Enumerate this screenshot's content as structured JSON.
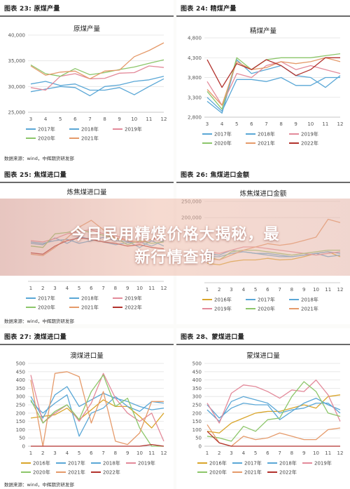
{
  "headline": {
    "line1": "今日民用精煤价格大揭秘，最",
    "line2": "新行情查询"
  },
  "source_text": "数据来源：wind，中辉期货研发部",
  "panels": [
    {
      "label": "图表 23: 原煤产量",
      "chart_title": "原煤产量"
    },
    {
      "label": "图表 24: 精煤产量",
      "chart_title": "精煤产量"
    },
    {
      "label": "图表 25: 焦煤进口量",
      "chart_title": "炼焦煤进口量"
    },
    {
      "label": "图表 26: 焦煤进口金额",
      "chart_title": "炼焦煤进口金额"
    },
    {
      "label": "图表 27: 澳煤进口量",
      "chart_title": "澳煤进口量"
    },
    {
      "label": "图表 28、蒙煤进口量",
      "chart_title": "蒙煤进口量"
    }
  ],
  "colors": {
    "2016年": "#d9a52b",
    "2017年": "#5aa7d6",
    "2018年": "#5aa7d6",
    "2019年": "#e38a9a",
    "2020年": "#8cc66a",
    "2021年": "#e59a6a",
    "2022年": "#b2322d"
  },
  "chart_data": [
    {
      "type": "line",
      "title": "原煤产量",
      "categories": [
        "3",
        "4",
        "5",
        "6",
        "7",
        "8",
        "9",
        "10",
        "11",
        "12"
      ],
      "ylim": [
        25000,
        40000
      ],
      "yticks": [
        "40,000",
        "35,000",
        "30,000",
        "25,000"
      ],
      "series": [
        {
          "name": "2017年",
          "values": [
            30500,
            31000,
            30200,
            30500,
            29300,
            29300,
            29800,
            28400,
            30000,
            31500
          ]
        },
        {
          "name": "2018年",
          "values": [
            29000,
            29500,
            30000,
            29800,
            28200,
            30000,
            30300,
            31000,
            31300,
            32000
          ]
        },
        {
          "name": "2019年",
          "values": [
            29800,
            29300,
            32000,
            32500,
            31500,
            31600,
            32600,
            32700,
            34000,
            33700
          ]
        },
        {
          "name": "2020年",
          "values": [
            34200,
            32500,
            32000,
            33500,
            32300,
            32700,
            33300,
            33800,
            34500,
            35200
          ]
        },
        {
          "name": "2021年",
          "values": [
            34000,
            32200,
            32800,
            33000,
            31500,
            33000,
            33200,
            35800,
            37000,
            38500
          ]
        }
      ]
    },
    {
      "type": "line",
      "title": "精煤产量",
      "categories": [
        "3",
        "4",
        "5",
        "6",
        "7",
        "8",
        "9",
        "10",
        "11",
        "12"
      ],
      "ylim": [
        2800,
        4800
      ],
      "yticks": [
        "4,800",
        "4,300",
        "3,800",
        "3,300",
        "2,800"
      ],
      "series": [
        {
          "name": "2017年",
          "values": [
            3200,
            2900,
            4250,
            3900,
            4000,
            4100,
            3850,
            3800,
            3550,
            3850
          ]
        },
        {
          "name": "2018年",
          "values": [
            3300,
            2950,
            3750,
            3750,
            3700,
            3800,
            3600,
            3600,
            3800,
            3800
          ]
        },
        {
          "name": "2019年",
          "values": [
            3700,
            3100,
            3900,
            3800,
            4100,
            4200,
            4000,
            4100,
            4000,
            3900
          ]
        },
        {
          "name": "2020年",
          "values": [
            3450,
            3000,
            4300,
            4000,
            4250,
            4300,
            4300,
            4300,
            4350,
            4400
          ]
        },
        {
          "name": "2021年",
          "values": [
            3500,
            3100,
            4200,
            4000,
            4050,
            4200,
            4150,
            4200,
            4300,
            4200
          ]
        },
        {
          "name": "2022年",
          "values": [
            4250,
            3550,
            4150,
            4000,
            4250,
            4100,
            3850,
            4000,
            4300,
            4300
          ]
        }
      ]
    },
    {
      "type": "line",
      "title": "炼焦煤进口量",
      "categories": [
        "1",
        "2",
        "3",
        "4",
        "5",
        "6",
        "7",
        "8",
        "9",
        "10",
        "11",
        "12"
      ],
      "ylim": [
        0,
        1200
      ],
      "yticks": [],
      "series": [
        {
          "name": "2017年",
          "values": [
            560,
            540,
            640,
            560,
            660,
            620,
            580,
            540,
            570,
            580,
            520,
            600
          ]
        },
        {
          "name": "2018年",
          "values": [
            580,
            560,
            600,
            620,
            560,
            600,
            650,
            600,
            590,
            500,
            600,
            520
          ]
        },
        {
          "name": "2019年",
          "values": [
            600,
            580,
            630,
            700,
            740,
            760,
            700,
            680,
            600,
            560,
            620,
            640
          ]
        },
        {
          "name": "2020年",
          "values": [
            520,
            500,
            700,
            720,
            760,
            720,
            680,
            640,
            540,
            600,
            560,
            580
          ]
        },
        {
          "name": "2021年",
          "values": [
            400,
            380,
            500,
            640,
            800,
            900,
            760,
            640,
            600,
            580,
            620,
            700
          ]
        },
        {
          "name": "2022年",
          "values": [
            420,
            400,
            520,
            600,
            640,
            620,
            580,
            560,
            520,
            540,
            500,
            480
          ]
        }
      ]
    },
    {
      "type": "line",
      "title": "炼焦煤进口金额",
      "categories": [
        "1",
        "2",
        "3",
        "4",
        "5",
        "6",
        "7",
        "8",
        "9",
        "10",
        "11",
        "12"
      ],
      "ylim": [
        0,
        250000
      ],
      "yticks": [
        "250,000",
        "200,000"
      ],
      "series": [
        {
          "name": "2016年",
          "values": [
            60000,
            55000,
            65000,
            70000,
            70000,
            75000,
            70000,
            72000,
            80000,
            90000,
            95000,
            80000
          ]
        },
        {
          "name": "2017年",
          "values": [
            90000,
            85000,
            100000,
            95000,
            90000,
            85000,
            80000,
            80000,
            85000,
            90000,
            95000,
            90000
          ]
        },
        {
          "name": "2018年",
          "values": [
            80000,
            80000,
            90000,
            95000,
            90000,
            90000,
            85000,
            80000,
            85000,
            90000,
            80000,
            85000
          ]
        },
        {
          "name": "2019年",
          "values": [
            95000,
            90000,
            100000,
            110000,
            110000,
            105000,
            100000,
            95000,
            90000,
            85000,
            90000,
            95000
          ]
        },
        {
          "name": "2020年",
          "values": [
            80000,
            70000,
            95000,
            100000,
            100000,
            95000,
            90000,
            85000,
            90000,
            95000,
            100000,
            100000
          ]
        },
        {
          "name": "2021年",
          "values": [
            75000,
            70000,
            85000,
            100000,
            110000,
            120000,
            115000,
            120000,
            130000,
            140000,
            195000,
            185000
          ]
        }
      ]
    },
    {
      "type": "line",
      "title": "澳煤进口量",
      "categories": [
        "1",
        "2",
        "3",
        "4",
        "5",
        "6",
        "7",
        "8",
        "9",
        "10",
        "11",
        "12"
      ],
      "ylim": [
        0,
        500
      ],
      "yticks": [
        "500",
        "450",
        "400",
        "350",
        "300",
        "250",
        "200",
        "150",
        "100",
        "50",
        "0"
      ],
      "series": [
        {
          "name": "2016年",
          "values": [
            170,
            180,
            190,
            230,
            160,
            220,
            280,
            240,
            240,
            180,
            110,
            200
          ]
        },
        {
          "name": "2017年",
          "values": [
            300,
            170,
            310,
            360,
            240,
            280,
            320,
            290,
            270,
            240,
            220,
            230
          ]
        },
        {
          "name": "2018年",
          "values": [
            270,
            200,
            260,
            310,
            60,
            200,
            230,
            300,
            240,
            210,
            270,
            260
          ]
        },
        {
          "name": "2019年",
          "values": [
            430,
            140,
            200,
            250,
            150,
            260,
            440,
            290,
            200,
            150,
            200,
            30
          ]
        },
        {
          "name": "2020年",
          "values": [
            280,
            140,
            210,
            250,
            160,
            330,
            430,
            240,
            290,
            110,
            0,
            0
          ]
        },
        {
          "name": "2021年",
          "values": [
            400,
            0,
            440,
            450,
            420,
            140,
            330,
            30,
            10,
            80,
            270,
            270
          ]
        },
        {
          "name": "2022年",
          "values": [
            0,
            0,
            0,
            0,
            0,
            0,
            0,
            0,
            0,
            0,
            10,
            0
          ]
        }
      ]
    },
    {
      "type": "line",
      "title": "蒙煤进口量",
      "categories": [
        "1",
        "2",
        "3",
        "4",
        "5",
        "6",
        "7",
        "8",
        "9",
        "10",
        "11",
        "12"
      ],
      "ylim": [
        0,
        500
      ],
      "yticks": [
        "500",
        "450",
        "400",
        "350",
        "300",
        "250",
        "200",
        "150",
        "100",
        "50",
        "0"
      ],
      "series": [
        {
          "name": "2016年",
          "values": [
            90,
            80,
            140,
            170,
            200,
            210,
            210,
            230,
            250,
            230,
            300,
            310
          ]
        },
        {
          "name": "2017年",
          "values": [
            220,
            150,
            270,
            300,
            280,
            260,
            200,
            220,
            230,
            260,
            260,
            200
          ]
        },
        {
          "name": "2018年",
          "values": [
            250,
            170,
            230,
            260,
            250,
            250,
            160,
            210,
            260,
            290,
            250,
            220
          ]
        },
        {
          "name": "2019年",
          "values": [
            260,
            140,
            320,
            370,
            360,
            330,
            290,
            340,
            330,
            400,
            310,
            150
          ]
        },
        {
          "name": "2020年",
          "values": [
            60,
            50,
            30,
            120,
            90,
            160,
            170,
            300,
            390,
            330,
            200,
            180
          ]
        },
        {
          "name": "2021年",
          "values": [
            130,
            20,
            0,
            60,
            40,
            50,
            80,
            60,
            40,
            40,
            100,
            110
          ]
        },
        {
          "name": "2022年",
          "values": [
            90,
            20,
            0,
            0,
            0,
            0,
            0,
            0,
            0,
            0,
            0,
            0
          ]
        }
      ]
    }
  ]
}
